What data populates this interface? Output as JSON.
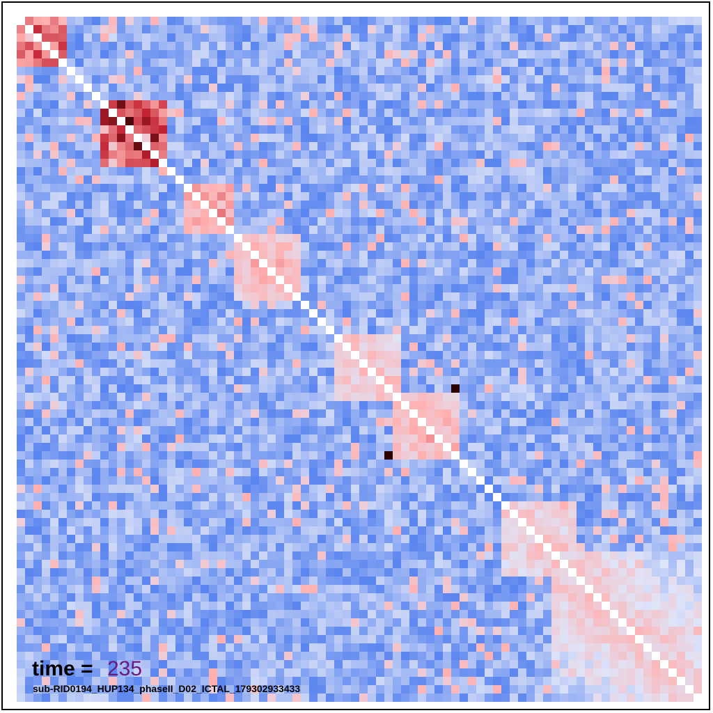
{
  "chart_data": {
    "type": "heatmap",
    "title": "",
    "xlabel": "",
    "ylabel": "",
    "size": 82,
    "value_range": [
      -1,
      1
    ],
    "grid": false,
    "legend": "none",
    "colormap": "coolwarm-like",
    "colors": {
      "negative": "#5b86ef",
      "neutral": "#dfe4f8",
      "positive": "#ffb0b0",
      "strong_positive": "#c02030",
      "saturated": "#2a0000",
      "diagonal": "#ffffff"
    },
    "diagonal_value": 1.0,
    "background_mean": -0.35,
    "positive_blocks": [
      {
        "from": 0,
        "to": 5,
        "value": 0.75
      },
      {
        "from": 10,
        "to": 17,
        "value": 0.85
      },
      {
        "from": 20,
        "to": 25,
        "value": 0.6
      },
      {
        "from": 26,
        "to": 33,
        "value": 0.45
      },
      {
        "from": 38,
        "to": 45,
        "value": 0.35
      },
      {
        "from": 45,
        "to": 52,
        "value": 0.45
      },
      {
        "from": 58,
        "to": 66,
        "value": 0.3
      },
      {
        "from": 64,
        "to": 81,
        "value": 0.3
      }
    ],
    "outliers": [
      {
        "row": 44,
        "col": 52,
        "value": 1.0
      },
      {
        "row": 52,
        "col": 44,
        "value": 1.0
      }
    ]
  },
  "annotation": {
    "time_label": "time =",
    "time_value": "235",
    "subject_id": "sub-RID0194_HUP134_phaseII_D02_ICTAL_179302933433"
  }
}
